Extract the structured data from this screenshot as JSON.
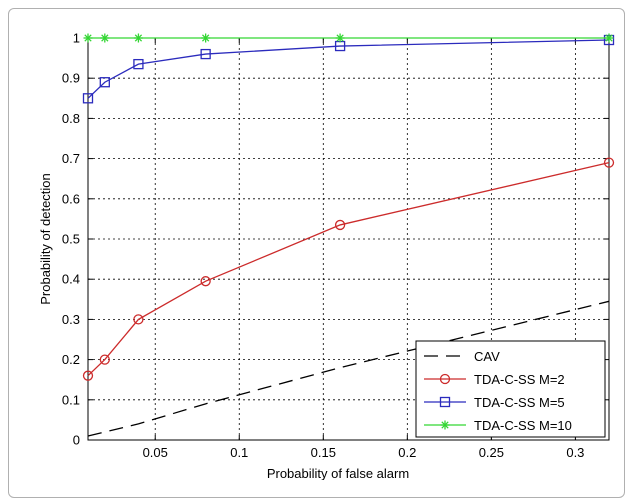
{
  "chart_data": {
    "type": "line",
    "title": "",
    "xlabel": "Probability of false alarm",
    "ylabel": "Probability of detection",
    "xlim": [
      0.01,
      0.32
    ],
    "ylim": [
      0,
      1
    ],
    "xticks": [
      0.05,
      0.1,
      0.15,
      0.2,
      0.25,
      0.3
    ],
    "xtick_labels": [
      "0.05",
      "0.1",
      "0.15",
      "0.2",
      "0.25",
      "0.3"
    ],
    "yticks": [
      0,
      0.1,
      0.2,
      0.3,
      0.4,
      0.5,
      0.6,
      0.7,
      0.8,
      0.9,
      1
    ],
    "ytick_labels": [
      "0",
      "0.1",
      "0.2",
      "0.3",
      "0.4",
      "0.5",
      "0.6",
      "0.7",
      "0.8",
      "0.9",
      "1"
    ],
    "grid": true,
    "legend_position": "bottom-right",
    "series": [
      {
        "name": "CAV",
        "color": "#000000",
        "line": "dashed",
        "marker": "none",
        "x": [
          0.01,
          0.02,
          0.04,
          0.08,
          0.16,
          0.32
        ],
        "y": [
          0.01,
          0.02,
          0.04,
          0.09,
          0.18,
          0.345
        ]
      },
      {
        "name": "TDA-C-SS M=2",
        "color": "#cc2b2b",
        "line": "solid",
        "marker": "circle",
        "x": [
          0.01,
          0.02,
          0.04,
          0.08,
          0.16,
          0.32
        ],
        "y": [
          0.16,
          0.2,
          0.3,
          0.395,
          0.535,
          0.69
        ]
      },
      {
        "name": "TDA-C-SS M=5",
        "color": "#2b2bbd",
        "line": "solid",
        "marker": "square",
        "x": [
          0.01,
          0.02,
          0.04,
          0.08,
          0.16,
          0.32
        ],
        "y": [
          0.85,
          0.89,
          0.935,
          0.96,
          0.98,
          0.995
        ]
      },
      {
        "name": "TDA-C-SS M=10",
        "color": "#33d633",
        "line": "solid",
        "marker": "star",
        "x": [
          0.01,
          0.02,
          0.04,
          0.08,
          0.16,
          0.32
        ],
        "y": [
          1,
          1,
          1,
          1,
          1,
          1
        ]
      }
    ]
  }
}
